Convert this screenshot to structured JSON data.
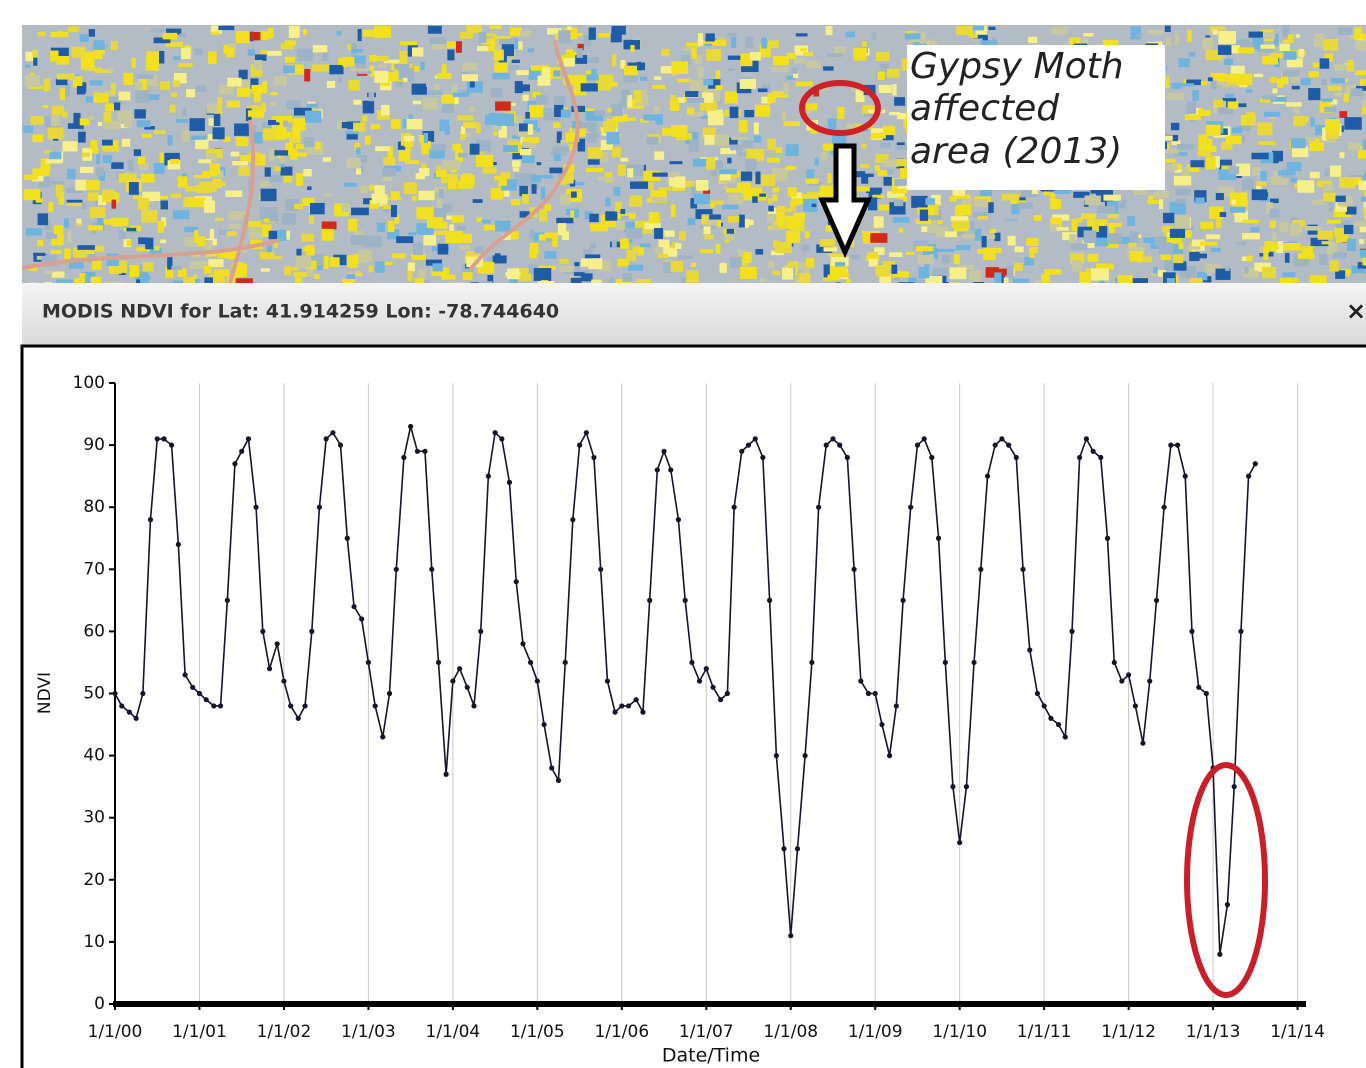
{
  "map": {
    "annotation_lines": [
      "Gypsy Moth",
      "affected",
      "area (2013)"
    ]
  },
  "panel": {
    "close": "×"
  },
  "chart_data": {
    "type": "line",
    "title": "MODIS NDVI for Lat: 41.914259 Lon: -78.744640",
    "x_label": "Date/Time",
    "y_label": "NDVI",
    "x": [
      2000,
      2000.08,
      2000.17,
      2000.25,
      2000.33,
      2000.42,
      2000.5,
      2000.58,
      2000.67,
      2000.75,
      2000.83,
      2000.92,
      2001,
      2001.08,
      2001.17,
      2001.25,
      2001.33,
      2001.42,
      2001.5,
      2001.58,
      2001.67,
      2001.75,
      2001.83,
      2001.92,
      2002,
      2002.08,
      2002.17,
      2002.25,
      2002.33,
      2002.42,
      2002.5,
      2002.58,
      2002.67,
      2002.75,
      2002.83,
      2002.92,
      2003,
      2003.08,
      2003.17,
      2003.25,
      2003.33,
      2003.42,
      2003.5,
      2003.58,
      2003.67,
      2003.75,
      2003.83,
      2003.92,
      2004,
      2004.08,
      2004.17,
      2004.25,
      2004.33,
      2004.42,
      2004.5,
      2004.58,
      2004.67,
      2004.75,
      2004.83,
      2004.92,
      2005,
      2005.08,
      2005.17,
      2005.25,
      2005.33,
      2005.42,
      2005.5,
      2005.58,
      2005.67,
      2005.75,
      2005.83,
      2005.92,
      2006,
      2006.08,
      2006.17,
      2006.25,
      2006.33,
      2006.42,
      2006.5,
      2006.58,
      2006.67,
      2006.75,
      2006.83,
      2006.92,
      2007,
      2007.08,
      2007.17,
      2007.25,
      2007.33,
      2007.42,
      2007.5,
      2007.58,
      2007.67,
      2007.75,
      2007.83,
      2007.92,
      2008,
      2008.08,
      2008.17,
      2008.25,
      2008.33,
      2008.42,
      2008.5,
      2008.58,
      2008.67,
      2008.75,
      2008.83,
      2008.92,
      2009,
      2009.08,
      2009.17,
      2009.25,
      2009.33,
      2009.42,
      2009.5,
      2009.58,
      2009.67,
      2009.75,
      2009.83,
      2009.92,
      2010,
      2010.08,
      2010.17,
      2010.25,
      2010.33,
      2010.42,
      2010.5,
      2010.58,
      2010.67,
      2010.75,
      2010.83,
      2010.92,
      2011,
      2011.08,
      2011.17,
      2011.25,
      2011.33,
      2011.42,
      2011.5,
      2011.58,
      2011.67,
      2011.75,
      2011.83,
      2011.92,
      2012,
      2012.08,
      2012.17,
      2012.25,
      2012.33,
      2012.42,
      2012.5,
      2012.58,
      2012.67,
      2012.75,
      2012.83,
      2012.92,
      2013,
      2013.08,
      2013.17,
      2013.25,
      2013.33,
      2013.42,
      2013.5
    ],
    "series": [
      {
        "name": "NDVI",
        "color": "#14142a",
        "values": [
          50,
          48,
          47,
          46,
          50,
          78,
          91,
          91,
          90,
          74,
          53,
          51,
          50,
          49,
          48,
          48,
          65,
          87,
          89,
          91,
          80,
          60,
          54,
          58,
          52,
          48,
          46,
          48,
          60,
          80,
          91,
          92,
          90,
          75,
          64,
          62,
          55,
          48,
          43,
          50,
          70,
          88,
          93,
          89,
          89,
          70,
          55,
          37,
          52,
          54,
          51,
          48,
          60,
          85,
          92,
          91,
          84,
          68,
          58,
          55,
          52,
          45,
          38,
          36,
          55,
          78,
          90,
          92,
          88,
          70,
          52,
          47,
          48,
          48,
          49,
          47,
          65,
          86,
          89,
          86,
          78,
          65,
          55,
          52,
          54,
          51,
          49,
          50,
          80,
          89,
          90,
          91,
          88,
          65,
          40,
          25,
          11,
          25,
          40,
          55,
          80,
          90,
          91,
          90,
          88,
          70,
          52,
          50,
          50,
          45,
          40,
          48,
          65,
          80,
          90,
          91,
          88,
          75,
          55,
          35,
          26,
          35,
          55,
          70,
          85,
          90,
          91,
          90,
          88,
          70,
          57,
          50,
          48,
          46,
          45,
          43,
          60,
          88,
          91,
          89,
          88,
          75,
          55,
          52,
          53,
          48,
          42,
          52,
          65,
          80,
          90,
          90,
          85,
          60,
          51,
          50,
          38,
          8,
          16,
          35,
          60,
          85,
          87
        ]
      }
    ],
    "xlim": [
      2000,
      2014.1
    ],
    "ylim": [
      0,
      100
    ],
    "xticks": [
      {
        "value": 2000,
        "label": "1/1/00"
      },
      {
        "value": 2001,
        "label": "1/1/01"
      },
      {
        "value": 2002,
        "label": "1/1/02"
      },
      {
        "value": 2003,
        "label": "1/1/03"
      },
      {
        "value": 2004,
        "label": "1/1/04"
      },
      {
        "value": 2005,
        "label": "1/1/05"
      },
      {
        "value": 2006,
        "label": "1/1/06"
      },
      {
        "value": 2007,
        "label": "1/1/07"
      },
      {
        "value": 2008,
        "label": "1/1/08"
      },
      {
        "value": 2009,
        "label": "1/1/09"
      },
      {
        "value": 2010,
        "label": "1/1/10"
      },
      {
        "value": 2011,
        "label": "1/1/11"
      },
      {
        "value": 2012,
        "label": "1/1/12"
      },
      {
        "value": 2013,
        "label": "1/1/13"
      },
      {
        "value": 2014,
        "label": "1/1/14"
      }
    ],
    "yticks": [
      0,
      10,
      20,
      30,
      40,
      50,
      60,
      70,
      80,
      90,
      100
    ],
    "grid": "x"
  }
}
